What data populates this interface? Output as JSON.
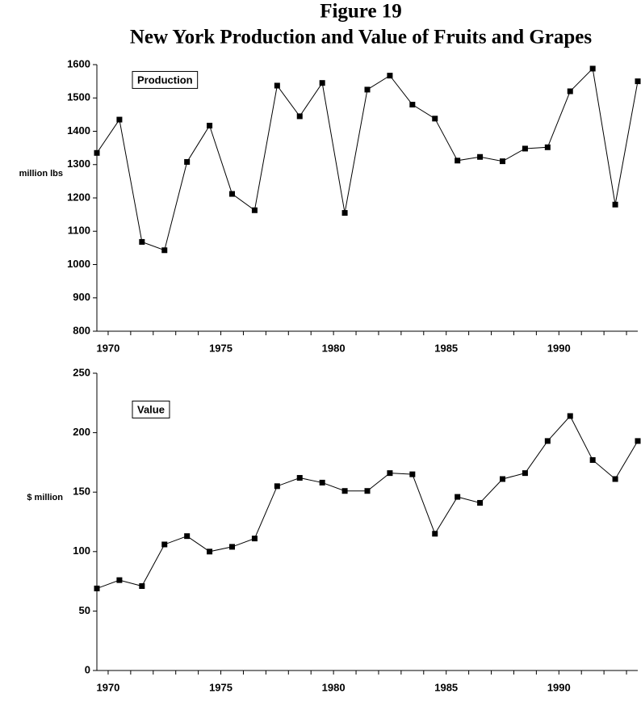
{
  "title": "Figure 19",
  "subtitle": "New York Production and Value of Fruits and Grapes",
  "chart_data": [
    {
      "type": "line",
      "annotation": "Production",
      "y_label": "million lbs",
      "categories": [
        "1970",
        null,
        null,
        null,
        null,
        "1975",
        null,
        null,
        null,
        null,
        "1980",
        null,
        null,
        null,
        null,
        "1985",
        null,
        null,
        null,
        null,
        "1990",
        null,
        null,
        null,
        null
      ],
      "values": [
        1335,
        1435,
        1068,
        1043,
        1308,
        1417,
        1212,
        1163,
        1537,
        1445,
        1545,
        1155,
        1525,
        1567,
        1480,
        1438,
        1312,
        1323,
        1310,
        1348,
        1352,
        1520,
        1588,
        1180,
        1550
      ],
      "color": "#000000",
      "ylim": [
        800,
        1600
      ],
      "yticks": [
        800,
        900,
        1000,
        1100,
        1200,
        1300,
        1400,
        1500,
        1600
      ]
    },
    {
      "type": "line",
      "annotation": "Value",
      "y_label": "$ million",
      "categories": [
        "1970",
        null,
        null,
        null,
        null,
        "1975",
        null,
        null,
        null,
        null,
        "1980",
        null,
        null,
        null,
        null,
        "1985",
        null,
        null,
        null,
        null,
        "1990",
        null,
        null,
        null,
        null
      ],
      "values": [
        69,
        76,
        71,
        106,
        113,
        100,
        104,
        111,
        155,
        162,
        158,
        151,
        151,
        166,
        165,
        115,
        146,
        141,
        161,
        166,
        193,
        214,
        177,
        161,
        193
      ],
      "color": "#000000",
      "ylim": [
        0,
        250
      ],
      "yticks": [
        0,
        50,
        100,
        150,
        200,
        250
      ]
    }
  ]
}
